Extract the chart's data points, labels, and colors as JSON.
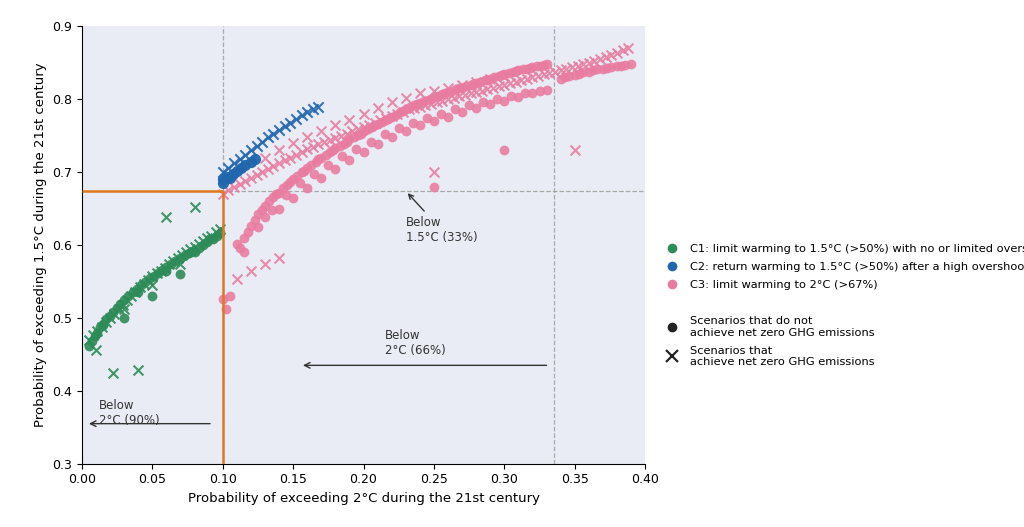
{
  "xlim": [
    0.0,
    0.4
  ],
  "ylim": [
    0.3,
    0.9
  ],
  "xlabel": "Probability of exceeding 2°C during the 21st century",
  "ylabel": "Probability of exceeding 1.5°C during the 21st century",
  "vline_orange": 0.1,
  "hline_orange": 0.674,
  "vline_dashed2": 0.335,
  "colors": {
    "C1": "#2d8b57",
    "C2": "#2166ac",
    "C3": "#e87ca0"
  },
  "C1_circles": [
    [
      0.005,
      0.462
    ],
    [
      0.007,
      0.468
    ],
    [
      0.009,
      0.475
    ],
    [
      0.011,
      0.48
    ],
    [
      0.013,
      0.487
    ],
    [
      0.015,
      0.492
    ],
    [
      0.017,
      0.498
    ],
    [
      0.02,
      0.503
    ],
    [
      0.022,
      0.508
    ],
    [
      0.025,
      0.513
    ],
    [
      0.027,
      0.519
    ],
    [
      0.03,
      0.524
    ],
    [
      0.033,
      0.53
    ],
    [
      0.036,
      0.535
    ],
    [
      0.039,
      0.54
    ],
    [
      0.042,
      0.545
    ],
    [
      0.045,
      0.55
    ],
    [
      0.048,
      0.555
    ],
    [
      0.051,
      0.558
    ],
    [
      0.054,
      0.562
    ],
    [
      0.057,
      0.566
    ],
    [
      0.06,
      0.57
    ],
    [
      0.063,
      0.574
    ],
    [
      0.066,
      0.578
    ],
    [
      0.07,
      0.582
    ],
    [
      0.073,
      0.586
    ],
    [
      0.076,
      0.589
    ],
    [
      0.079,
      0.592
    ],
    [
      0.083,
      0.596
    ],
    [
      0.086,
      0.6
    ],
    [
      0.089,
      0.604
    ],
    [
      0.093,
      0.608
    ],
    [
      0.096,
      0.612
    ],
    [
      0.098,
      0.616
    ],
    [
      0.03,
      0.5
    ],
    [
      0.05,
      0.53
    ],
    [
      0.07,
      0.56
    ],
    [
      0.09,
      0.608
    ],
    [
      0.015,
      0.49
    ],
    [
      0.04,
      0.535
    ],
    [
      0.06,
      0.565
    ],
    [
      0.08,
      0.59
    ]
  ],
  "C1_crosses": [
    [
      0.005,
      0.47
    ],
    [
      0.008,
      0.476
    ],
    [
      0.011,
      0.482
    ],
    [
      0.014,
      0.488
    ],
    [
      0.017,
      0.494
    ],
    [
      0.02,
      0.5
    ],
    [
      0.023,
      0.506
    ],
    [
      0.026,
      0.512
    ],
    [
      0.029,
      0.518
    ],
    [
      0.032,
      0.524
    ],
    [
      0.035,
      0.53
    ],
    [
      0.038,
      0.536
    ],
    [
      0.041,
      0.542
    ],
    [
      0.044,
      0.547
    ],
    [
      0.047,
      0.552
    ],
    [
      0.05,
      0.557
    ],
    [
      0.053,
      0.561
    ],
    [
      0.056,
      0.565
    ],
    [
      0.059,
      0.569
    ],
    [
      0.062,
      0.574
    ],
    [
      0.065,
      0.578
    ],
    [
      0.068,
      0.582
    ],
    [
      0.071,
      0.586
    ],
    [
      0.074,
      0.59
    ],
    [
      0.077,
      0.594
    ],
    [
      0.08,
      0.597
    ],
    [
      0.083,
      0.601
    ],
    [
      0.086,
      0.605
    ],
    [
      0.089,
      0.609
    ],
    [
      0.092,
      0.613
    ],
    [
      0.095,
      0.618
    ],
    [
      0.098,
      0.622
    ],
    [
      0.022,
      0.425
    ],
    [
      0.04,
      0.428
    ],
    [
      0.06,
      0.638
    ],
    [
      0.08,
      0.652
    ],
    [
      0.01,
      0.456
    ],
    [
      0.03,
      0.512
    ],
    [
      0.05,
      0.545
    ],
    [
      0.07,
      0.574
    ]
  ],
  "C2_circles": [
    [
      0.1,
      0.69
    ],
    [
      0.103,
      0.694
    ],
    [
      0.107,
      0.698
    ],
    [
      0.11,
      0.702
    ],
    [
      0.113,
      0.706
    ],
    [
      0.116,
      0.71
    ],
    [
      0.12,
      0.714
    ],
    [
      0.123,
      0.718
    ],
    [
      0.1,
      0.685
    ],
    [
      0.105,
      0.692
    ]
  ],
  "C2_crosses": [
    [
      0.1,
      0.7
    ],
    [
      0.104,
      0.706
    ],
    [
      0.108,
      0.712
    ],
    [
      0.112,
      0.718
    ],
    [
      0.116,
      0.724
    ],
    [
      0.12,
      0.73
    ],
    [
      0.124,
      0.736
    ],
    [
      0.128,
      0.742
    ],
    [
      0.132,
      0.748
    ],
    [
      0.136,
      0.753
    ],
    [
      0.14,
      0.758
    ],
    [
      0.144,
      0.763
    ],
    [
      0.148,
      0.768
    ],
    [
      0.152,
      0.773
    ],
    [
      0.156,
      0.778
    ],
    [
      0.16,
      0.782
    ],
    [
      0.164,
      0.786
    ],
    [
      0.168,
      0.79
    ]
  ],
  "C3_circles": [
    [
      0.1,
      0.526
    ],
    [
      0.102,
      0.512
    ],
    [
      0.105,
      0.53
    ],
    [
      0.11,
      0.602
    ],
    [
      0.112,
      0.596
    ],
    [
      0.115,
      0.61
    ],
    [
      0.118,
      0.618
    ],
    [
      0.12,
      0.626
    ],
    [
      0.123,
      0.634
    ],
    [
      0.125,
      0.642
    ],
    [
      0.128,
      0.648
    ],
    [
      0.13,
      0.654
    ],
    [
      0.133,
      0.66
    ],
    [
      0.136,
      0.666
    ],
    [
      0.138,
      0.67
    ],
    [
      0.14,
      0.672
    ],
    [
      0.143,
      0.678
    ],
    [
      0.146,
      0.682
    ],
    [
      0.148,
      0.686
    ],
    [
      0.15,
      0.69
    ],
    [
      0.153,
      0.695
    ],
    [
      0.156,
      0.7
    ],
    [
      0.158,
      0.702
    ],
    [
      0.16,
      0.706
    ],
    [
      0.163,
      0.71
    ],
    [
      0.166,
      0.714
    ],
    [
      0.168,
      0.718
    ],
    [
      0.17,
      0.72
    ],
    [
      0.173,
      0.724
    ],
    [
      0.176,
      0.728
    ],
    [
      0.178,
      0.73
    ],
    [
      0.18,
      0.733
    ],
    [
      0.183,
      0.736
    ],
    [
      0.186,
      0.739
    ],
    [
      0.188,
      0.742
    ],
    [
      0.19,
      0.745
    ],
    [
      0.193,
      0.748
    ],
    [
      0.196,
      0.751
    ],
    [
      0.198,
      0.753
    ],
    [
      0.2,
      0.756
    ],
    [
      0.203,
      0.759
    ],
    [
      0.206,
      0.762
    ],
    [
      0.208,
      0.764
    ],
    [
      0.21,
      0.766
    ],
    [
      0.213,
      0.769
    ],
    [
      0.216,
      0.772
    ],
    [
      0.218,
      0.774
    ],
    [
      0.22,
      0.776
    ],
    [
      0.223,
      0.779
    ],
    [
      0.226,
      0.782
    ],
    [
      0.228,
      0.784
    ],
    [
      0.23,
      0.786
    ],
    [
      0.233,
      0.789
    ],
    [
      0.236,
      0.792
    ],
    [
      0.238,
      0.794
    ],
    [
      0.24,
      0.795
    ],
    [
      0.243,
      0.797
    ],
    [
      0.246,
      0.799
    ],
    [
      0.248,
      0.801
    ],
    [
      0.25,
      0.803
    ],
    [
      0.253,
      0.805
    ],
    [
      0.256,
      0.807
    ],
    [
      0.258,
      0.808
    ],
    [
      0.26,
      0.81
    ],
    [
      0.263,
      0.812
    ],
    [
      0.266,
      0.814
    ],
    [
      0.268,
      0.815
    ],
    [
      0.27,
      0.816
    ],
    [
      0.273,
      0.818
    ],
    [
      0.276,
      0.82
    ],
    [
      0.278,
      0.821
    ],
    [
      0.28,
      0.822
    ],
    [
      0.283,
      0.824
    ],
    [
      0.286,
      0.826
    ],
    [
      0.288,
      0.827
    ],
    [
      0.29,
      0.828
    ],
    [
      0.293,
      0.83
    ],
    [
      0.296,
      0.832
    ],
    [
      0.298,
      0.833
    ],
    [
      0.3,
      0.834
    ],
    [
      0.303,
      0.836
    ],
    [
      0.306,
      0.838
    ],
    [
      0.308,
      0.839
    ],
    [
      0.31,
      0.84
    ],
    [
      0.313,
      0.841
    ],
    [
      0.316,
      0.842
    ],
    [
      0.318,
      0.843
    ],
    [
      0.32,
      0.844
    ],
    [
      0.323,
      0.845
    ],
    [
      0.326,
      0.846
    ],
    [
      0.328,
      0.847
    ],
    [
      0.33,
      0.848
    ],
    [
      0.115,
      0.59
    ],
    [
      0.125,
      0.625
    ],
    [
      0.135,
      0.648
    ],
    [
      0.145,
      0.668
    ],
    [
      0.155,
      0.685
    ],
    [
      0.165,
      0.698
    ],
    [
      0.175,
      0.71
    ],
    [
      0.185,
      0.722
    ],
    [
      0.195,
      0.732
    ],
    [
      0.205,
      0.742
    ],
    [
      0.215,
      0.752
    ],
    [
      0.225,
      0.76
    ],
    [
      0.235,
      0.768
    ],
    [
      0.245,
      0.774
    ],
    [
      0.255,
      0.78
    ],
    [
      0.265,
      0.786
    ],
    [
      0.275,
      0.792
    ],
    [
      0.285,
      0.796
    ],
    [
      0.295,
      0.8
    ],
    [
      0.305,
      0.804
    ],
    [
      0.315,
      0.808
    ],
    [
      0.325,
      0.812
    ],
    [
      0.13,
      0.638
    ],
    [
      0.14,
      0.65
    ],
    [
      0.15,
      0.665
    ],
    [
      0.16,
      0.678
    ],
    [
      0.17,
      0.692
    ],
    [
      0.18,
      0.704
    ],
    [
      0.19,
      0.716
    ],
    [
      0.2,
      0.728
    ],
    [
      0.21,
      0.738
    ],
    [
      0.22,
      0.748
    ],
    [
      0.23,
      0.756
    ],
    [
      0.24,
      0.764
    ],
    [
      0.25,
      0.77
    ],
    [
      0.26,
      0.776
    ],
    [
      0.27,
      0.782
    ],
    [
      0.28,
      0.788
    ],
    [
      0.29,
      0.793
    ],
    [
      0.3,
      0.798
    ],
    [
      0.31,
      0.803
    ],
    [
      0.32,
      0.808
    ],
    [
      0.33,
      0.813
    ],
    [
      0.25,
      0.68
    ],
    [
      0.3,
      0.73
    ],
    [
      0.34,
      0.828
    ],
    [
      0.343,
      0.83
    ],
    [
      0.346,
      0.832
    ],
    [
      0.35,
      0.833
    ],
    [
      0.353,
      0.835
    ],
    [
      0.356,
      0.837
    ],
    [
      0.36,
      0.838
    ],
    [
      0.363,
      0.84
    ],
    [
      0.366,
      0.841
    ],
    [
      0.37,
      0.842
    ],
    [
      0.373,
      0.843
    ],
    [
      0.376,
      0.844
    ],
    [
      0.38,
      0.845
    ],
    [
      0.383,
      0.846
    ],
    [
      0.386,
      0.847
    ],
    [
      0.39,
      0.848
    ]
  ],
  "C3_crosses": [
    [
      0.1,
      0.67
    ],
    [
      0.104,
      0.675
    ],
    [
      0.108,
      0.68
    ],
    [
      0.112,
      0.684
    ],
    [
      0.116,
      0.688
    ],
    [
      0.12,
      0.692
    ],
    [
      0.124,
      0.696
    ],
    [
      0.128,
      0.7
    ],
    [
      0.132,
      0.704
    ],
    [
      0.136,
      0.708
    ],
    [
      0.14,
      0.712
    ],
    [
      0.144,
      0.716
    ],
    [
      0.148,
      0.72
    ],
    [
      0.152,
      0.724
    ],
    [
      0.156,
      0.728
    ],
    [
      0.16,
      0.732
    ],
    [
      0.164,
      0.735
    ],
    [
      0.168,
      0.738
    ],
    [
      0.172,
      0.741
    ],
    [
      0.176,
      0.744
    ],
    [
      0.18,
      0.747
    ],
    [
      0.184,
      0.75
    ],
    [
      0.188,
      0.753
    ],
    [
      0.192,
      0.756
    ],
    [
      0.196,
      0.759
    ],
    [
      0.2,
      0.762
    ],
    [
      0.204,
      0.765
    ],
    [
      0.208,
      0.768
    ],
    [
      0.212,
      0.771
    ],
    [
      0.216,
      0.774
    ],
    [
      0.22,
      0.777
    ],
    [
      0.224,
      0.78
    ],
    [
      0.228,
      0.783
    ],
    [
      0.232,
      0.786
    ],
    [
      0.236,
      0.788
    ],
    [
      0.24,
      0.79
    ],
    [
      0.244,
      0.792
    ],
    [
      0.248,
      0.794
    ],
    [
      0.252,
      0.796
    ],
    [
      0.256,
      0.798
    ],
    [
      0.26,
      0.8
    ],
    [
      0.264,
      0.802
    ],
    [
      0.268,
      0.804
    ],
    [
      0.272,
      0.806
    ],
    [
      0.276,
      0.808
    ],
    [
      0.28,
      0.81
    ],
    [
      0.284,
      0.812
    ],
    [
      0.288,
      0.814
    ],
    [
      0.292,
      0.816
    ],
    [
      0.296,
      0.818
    ],
    [
      0.3,
      0.82
    ],
    [
      0.304,
      0.822
    ],
    [
      0.308,
      0.824
    ],
    [
      0.312,
      0.826
    ],
    [
      0.316,
      0.828
    ],
    [
      0.32,
      0.83
    ],
    [
      0.324,
      0.832
    ],
    [
      0.328,
      0.834
    ],
    [
      0.332,
      0.836
    ],
    [
      0.13,
      0.72
    ],
    [
      0.14,
      0.73
    ],
    [
      0.15,
      0.74
    ],
    [
      0.16,
      0.748
    ],
    [
      0.17,
      0.756
    ],
    [
      0.18,
      0.764
    ],
    [
      0.19,
      0.772
    ],
    [
      0.2,
      0.78
    ],
    [
      0.21,
      0.788
    ],
    [
      0.22,
      0.796
    ],
    [
      0.23,
      0.802
    ],
    [
      0.24,
      0.808
    ],
    [
      0.25,
      0.812
    ],
    [
      0.26,
      0.816
    ],
    [
      0.27,
      0.82
    ],
    [
      0.28,
      0.824
    ],
    [
      0.29,
      0.828
    ],
    [
      0.3,
      0.832
    ],
    [
      0.11,
      0.554
    ],
    [
      0.12,
      0.564
    ],
    [
      0.13,
      0.574
    ],
    [
      0.14,
      0.582
    ],
    [
      0.336,
      0.838
    ],
    [
      0.34,
      0.84
    ],
    [
      0.344,
      0.842
    ],
    [
      0.348,
      0.844
    ],
    [
      0.352,
      0.846
    ],
    [
      0.356,
      0.848
    ],
    [
      0.36,
      0.85
    ],
    [
      0.364,
      0.852
    ],
    [
      0.368,
      0.855
    ],
    [
      0.372,
      0.858
    ],
    [
      0.376,
      0.861
    ],
    [
      0.38,
      0.864
    ],
    [
      0.384,
      0.867
    ],
    [
      0.388,
      0.87
    ],
    [
      0.35,
      0.73
    ],
    [
      0.25,
      0.7
    ]
  ]
}
